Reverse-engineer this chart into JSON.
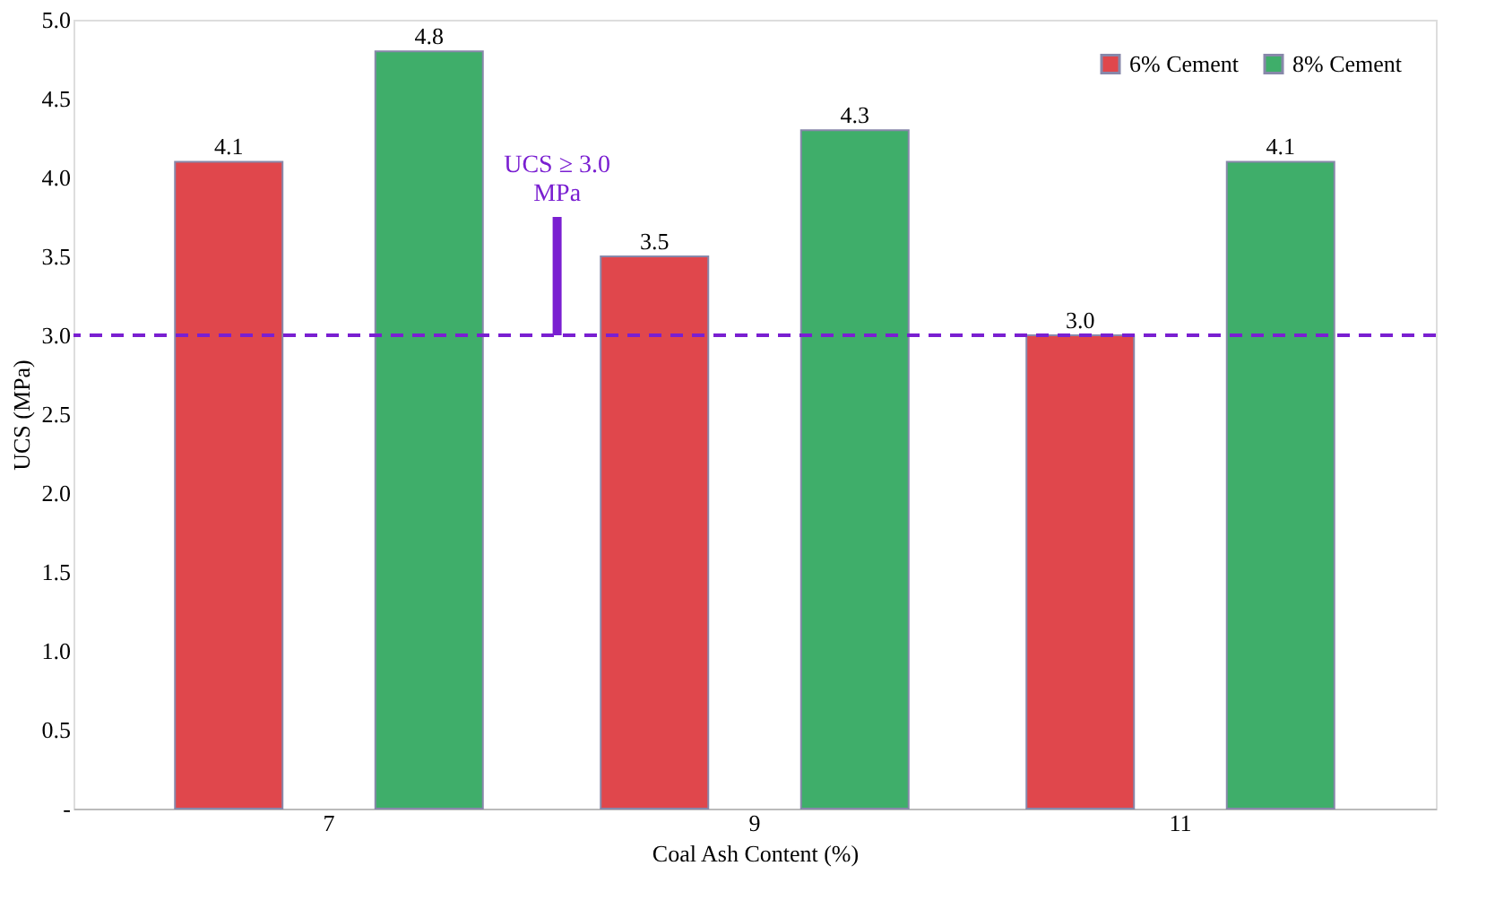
{
  "chart_data": {
    "type": "bar",
    "xlabel": "Coal Ash Content (%)",
    "ylabel": "UCS (MPa)",
    "categories": [
      "7",
      "9",
      "11"
    ],
    "series": [
      {
        "name": "6% Cement",
        "color": "#e0474c",
        "values": [
          4.1,
          3.5,
          3.0
        ],
        "value_labels": [
          "4.1",
          "3.5",
          "3.0"
        ]
      },
      {
        "name": "8% Cement",
        "color": "#3fae6a",
        "values": [
          4.8,
          4.3,
          4.1
        ],
        "value_labels": [
          "4.8",
          "4.3",
          "4.1"
        ]
      }
    ],
    "ylim": [
      0,
      5
    ],
    "yticks": [
      {
        "value": 0,
        "label": "-"
      },
      0.5,
      {
        "value": 1,
        "label": "1.0"
      },
      1.5,
      {
        "value": 2,
        "label": "2.0"
      },
      2.5,
      {
        "value": 3,
        "label": "3.0"
      },
      3.5,
      {
        "value": 4,
        "label": "4.0"
      },
      4.5,
      {
        "value": 5,
        "label": "5.0"
      }
    ],
    "ref_lines": [
      {
        "axis": "y",
        "value": 3.0,
        "color": "#7a1fd1",
        "line_style": "dashed"
      }
    ],
    "annotations": [
      {
        "text": "UCS ≥ 3.0\nMPa",
        "y": 3.0
      }
    ],
    "grid": false,
    "legend": "top right"
  }
}
